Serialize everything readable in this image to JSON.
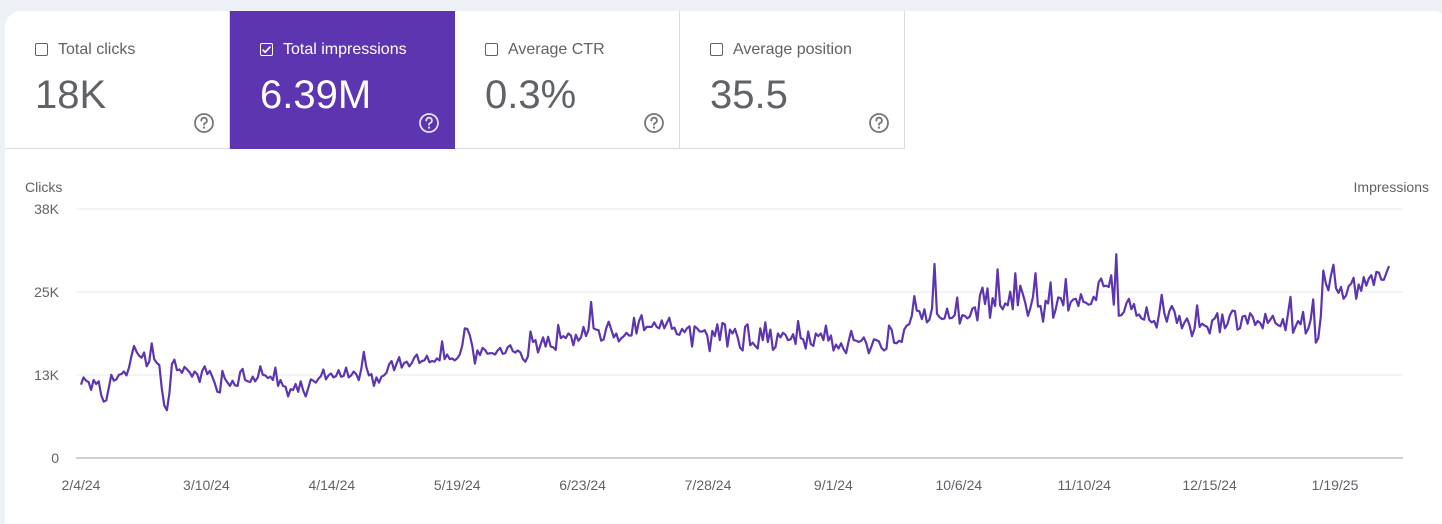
{
  "metrics": [
    {
      "label": "Total clicks",
      "value": "18K",
      "checked": false,
      "icon": "help-circle-icon"
    },
    {
      "label": "Total impressions",
      "value": "6.39M",
      "checked": true,
      "icon": "help-circle-icon"
    },
    {
      "label": "Average CTR",
      "value": "0.3%",
      "checked": false,
      "icon": "help-circle-icon"
    },
    {
      "label": "Average position",
      "value": "35.5",
      "checked": false,
      "icon": "help-circle-icon"
    }
  ],
  "colors": {
    "accent": "#5e35b1",
    "line": "#5e35b1",
    "text": "#5f6368",
    "grid": "#e8eaed"
  },
  "chart_data": {
    "type": "line",
    "left_axis_label": "Clicks",
    "right_axis_label": "Impressions",
    "y_ticks": [
      "0",
      "13K",
      "25K",
      "38K"
    ],
    "ylim": [
      0,
      38000
    ],
    "x_ticks": [
      "2/4/24",
      "3/10/24",
      "4/14/24",
      "5/19/24",
      "6/23/24",
      "7/28/24",
      "9/1/24",
      "10/6/24",
      "11/10/24",
      "12/15/24",
      "1/19/25"
    ],
    "x_start": "2/4/24",
    "x_end": "2/2/25",
    "series": [
      {
        "name": "Total impressions",
        "values": [
          11200,
          12300,
          11800,
          11600,
          10400,
          11900,
          11300,
          11700,
          9600,
          8600,
          8800,
          10700,
          12700,
          11800,
          12000,
          12700,
          12800,
          13200,
          12600,
          13800,
          15600,
          17100,
          16200,
          15600,
          15300,
          16100,
          14000,
          14700,
          17500,
          15100,
          14500,
          14200,
          10600,
          8000,
          7300,
          9900,
          14300,
          15000,
          13400,
          13500,
          13000,
          13900,
          13500,
          13100,
          12400,
          13200,
          12800,
          11600,
          13300,
          14000,
          12800,
          13300,
          12400,
          11400,
          10100,
          10000,
          13300,
          12100,
          11500,
          11000,
          11800,
          11100,
          11000,
          13100,
          13600,
          11900,
          11700,
          11600,
          12400,
          11700,
          12300,
          14000,
          12700,
          12600,
          12200,
          12400,
          11900,
          13800,
          11000,
          11900,
          11000,
          10900,
          9400,
          10500,
          10400,
          11300,
          10100,
          11700,
          10300,
          9400,
          10700,
          12000,
          11800,
          11500,
          12100,
          12500,
          13500,
          12000,
          12600,
          12900,
          12300,
          12500,
          13400,
          12400,
          12500,
          13800,
          12300,
          12600,
          13200,
          12800,
          11900,
          13600,
          16200,
          13900,
          12600,
          12800,
          11000,
          12300,
          11500,
          12400,
          12600,
          13000,
          14300,
          14800,
          13400,
          14400,
          15400,
          13800,
          14500,
          14700,
          14000,
          14500,
          15300,
          15800,
          14500,
          14800,
          14900,
          15600,
          14600,
          14800,
          14700,
          15200,
          14900,
          17800,
          15100,
          15800,
          15100,
          15200,
          14900,
          15200,
          15800,
          17200,
          19800,
          19700,
          18700,
          17000,
          14400,
          16400,
          15700,
          16800,
          16500,
          15900,
          16000,
          16000,
          15800,
          16400,
          16800,
          15900,
          16000,
          16900,
          17200,
          16300,
          16100,
          16400,
          16100,
          15100,
          14700,
          15500,
          19300,
          17700,
          18000,
          16100,
          17300,
          18400,
          17000,
          18500,
          17000,
          16900,
          16500,
          20300,
          18300,
          18600,
          18300,
          19000,
          18700,
          17200,
          18800,
          17900,
          18400,
          20000,
          18600,
          19600,
          23800,
          19800,
          19600,
          19500,
          17900,
          18100,
          19800,
          20800,
          19600,
          18400,
          19000,
          17800,
          18300,
          18600,
          19100,
          18700,
          18700,
          21400,
          19000,
          20900,
          21800,
          19500,
          20000,
          20000,
          20000,
          20700,
          20000,
          19800,
          21000,
          19800,
          20600,
          21400,
          19700,
          19900,
          18900,
          18800,
          19700,
          19200,
          19800,
          20100,
          17000,
          20100,
          19800,
          19300,
          19300,
          19500,
          18700,
          16300,
          19400,
          18600,
          20400,
          18000,
          20600,
          20400,
          17000,
          19600,
          19000,
          19700,
          18500,
          16800,
          16400,
          20000,
          20400,
          17200,
          17600,
          17100,
          16700,
          19800,
          18000,
          20700,
          17700,
          19600,
          16500,
          16900,
          19000,
          18400,
          19100,
          18800,
          18000,
          18100,
          18900,
          17400,
          20900,
          18300,
          18100,
          16700,
          19300,
          17400,
          17100,
          19000,
          18600,
          19000,
          18000,
          20200,
          17900,
          18700,
          16400,
          17300,
          16700,
          17500,
          16600,
          16000,
          17800,
          19400,
          18000,
          17900,
          17700,
          17900,
          18400,
          17500,
          16000,
          17000,
          18100,
          18000,
          17800,
          16800,
          16400,
          16700,
          20200,
          19600,
          17600,
          17500,
          17900,
          17700,
          19600,
          20200,
          20400,
          21700,
          24700,
          22500,
          22400,
          21200,
          22700,
          20700,
          21100,
          22800,
          29600,
          22000,
          21500,
          21200,
          21300,
          22800,
          21300,
          21400,
          21800,
          24500,
          20500,
          21800,
          21700,
          21300,
          21600,
          22800,
          23000,
          21000,
          24800,
          26000,
          23500,
          25900,
          21400,
          24400,
          23200,
          28800,
          23300,
          22700,
          23600,
          23300,
          25400,
          22700,
          28200,
          23300,
          26300,
          25000,
          23600,
          21700,
          22900,
          24600,
          28200,
          23100,
          23200,
          20800,
          24000,
          23600,
          26800,
          21400,
          22700,
          24500,
          24400,
          23300,
          27300,
          22500,
          23800,
          24200,
          24300,
          23200,
          25000,
          23800,
          23700,
          23400,
          23500,
          24600,
          24100,
          26800,
          27400,
          26200,
          26300,
          26100,
          27900,
          23400,
          31100,
          21700,
          21800,
          22300,
          23600,
          24300,
          22700,
          23500,
          21700,
          21900,
          21300,
          21100,
          23000,
          21100,
          20700,
          20900,
          19900,
          22100,
          24900,
          22100,
          20800,
          22400,
          23200,
          22400,
          20600,
          21700,
          19800,
          20700,
          21300,
          20300,
          18600,
          19800,
          23300,
          20000,
          20500,
          20200,
          20000,
          19000,
          21000,
          21300,
          22100,
          19200,
          21900,
          19800,
          20400,
          21800,
          22500,
          22400,
          19600,
          19800,
          21600,
          21700,
          20500,
          22100,
          21600,
          20300,
          20900,
          20600,
          19800,
          22000,
          20600,
          21100,
          21700,
          20600,
          20300,
          20100,
          21200,
          19500,
          22000,
          24600,
          19100,
          20100,
          20900,
          20400,
          22300,
          19000,
          19700,
          21100,
          24200,
          17600,
          18300,
          21600,
          28600,
          26600,
          25600,
          27800,
          29500,
          25900,
          25200,
          26100,
          24300,
          24800,
          26200,
          26600,
          27500,
          24300,
          26500,
          25500,
          27600,
          26300,
          27400,
          27900,
          26400,
          28400,
          28300,
          27200,
          27200,
          28300,
          29300
        ]
      }
    ]
  }
}
